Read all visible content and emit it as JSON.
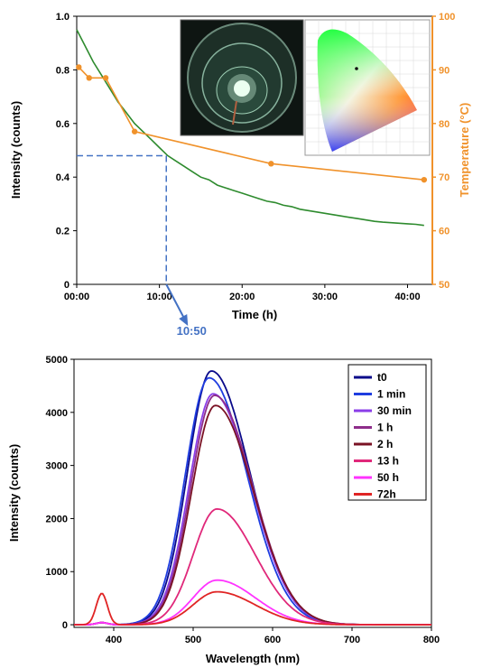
{
  "chart_data": [
    {
      "type": "line",
      "xlabel": "Time (h)",
      "ylabel": "Intensity (counts)",
      "y2label": "Temperature (°C)",
      "x_unit": "hours",
      "xlim": [
        0,
        43
      ],
      "ylim": [
        0,
        1.0
      ],
      "y2lim": [
        50,
        100
      ],
      "x_tick_labels": [
        "00:00",
        "10:00",
        "20:00",
        "30:00",
        "40:00"
      ],
      "x_ticks": [
        0,
        10,
        20,
        30,
        40
      ],
      "y_ticks": [
        0,
        0.2,
        0.4,
        0.6,
        0.8,
        1.0
      ],
      "y_tick_labels": [
        "0",
        "0.2",
        "0.4",
        "0.6",
        "0.8",
        "1.0"
      ],
      "y2_ticks": [
        50,
        60,
        70,
        80,
        90,
        100
      ],
      "y2_tick_labels": [
        "50",
        "60",
        "70",
        "80",
        "90",
        "100"
      ],
      "colors": {
        "intensity": "#2e8b2e",
        "temperature": "#f0922b",
        "annotation": "#4472c4",
        "right_axis": "#f0922b"
      },
      "series": [
        {
          "axis": "left",
          "x": [
            0,
            1,
            2,
            3,
            4,
            5,
            6,
            7,
            8,
            9,
            10,
            11,
            12,
            13,
            14,
            15,
            16,
            17,
            18,
            19,
            20,
            21,
            22,
            23,
            24,
            25,
            26,
            27,
            28,
            29,
            30,
            31,
            32,
            33,
            34,
            35,
            36,
            37,
            38,
            39,
            40,
            41,
            42
          ],
          "values": [
            0.95,
            0.89,
            0.83,
            0.78,
            0.73,
            0.68,
            0.64,
            0.6,
            0.57,
            0.54,
            0.51,
            0.48,
            0.46,
            0.44,
            0.42,
            0.4,
            0.39,
            0.37,
            0.36,
            0.35,
            0.34,
            0.33,
            0.32,
            0.31,
            0.305,
            0.295,
            0.29,
            0.28,
            0.275,
            0.27,
            0.265,
            0.26,
            0.255,
            0.25,
            0.245,
            0.24,
            0.235,
            0.232,
            0.23,
            0.228,
            0.226,
            0.224,
            0.22
          ]
        },
        {
          "axis": "right",
          "x": [
            0.25,
            1.5,
            3.5,
            7,
            23.5,
            42
          ],
          "values": [
            90.5,
            88.5,
            88.5,
            78.5,
            72.5,
            69.5
          ]
        }
      ],
      "annotation": {
        "label": "10:50",
        "x": 10.83,
        "y": 0.48
      }
    },
    {
      "type": "line",
      "xlabel": "Wavelength (nm)",
      "ylabel": "Intensity (counts)",
      "xlim": [
        350,
        800
      ],
      "ylim": [
        -50,
        5000
      ],
      "x_ticks": [
        400,
        500,
        600,
        700,
        800
      ],
      "x_tick_labels": [
        "400",
        "500",
        "600",
        "700",
        "800"
      ],
      "y_ticks": [
        0,
        1000,
        2000,
        3000,
        4000,
        5000
      ],
      "y_tick_labels": [
        "0",
        "1000",
        "2000",
        "3000",
        "4000",
        "5000"
      ],
      "legend_position": "top-right",
      "series": [
        {
          "name": "t0",
          "color": "#0a0a8a",
          "peak": 4780,
          "center": 523,
          "uv": 40
        },
        {
          "name": "1 min",
          "color": "#1f3de0",
          "peak": 4650,
          "center": 520,
          "uv": 40
        },
        {
          "name": "30 min",
          "color": "#8a3de8",
          "peak": 4350,
          "center": 525,
          "uv": 40
        },
        {
          "name": "1 h",
          "color": "#8e2d8a",
          "peak": 4320,
          "center": 527,
          "uv": 40
        },
        {
          "name": "2 h",
          "color": "#7a1224",
          "peak": 4130,
          "center": 528,
          "uv": 40
        },
        {
          "name": "13 h",
          "color": "#e0287a",
          "peak": 2180,
          "center": 530,
          "uv": 40
        },
        {
          "name": "50 h",
          "color": "#ff33ff",
          "peak": 840,
          "center": 530,
          "uv": 40
        },
        {
          "name": "72h",
          "color": "#e02424",
          "peak": 620,
          "center": 530,
          "uv": 590
        }
      ]
    }
  ]
}
